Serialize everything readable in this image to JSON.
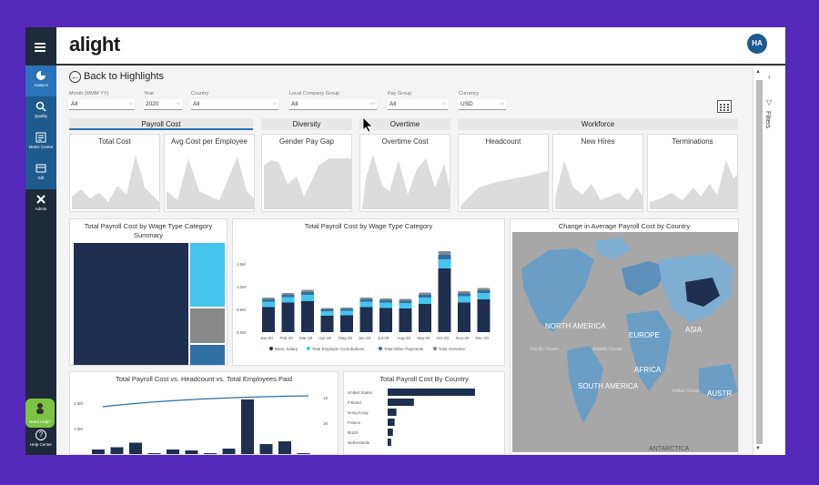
{
  "app": {
    "logo": "alight",
    "avatar_initials": "HA"
  },
  "sidebar": {
    "items": [
      {
        "label": "Analyze",
        "icon": "pie-chart-icon"
      },
      {
        "label": "Quality",
        "icon": "magnifier-icon"
      },
      {
        "label": "Metric Center",
        "icon": "metric-icon"
      },
      {
        "label": "Gift",
        "icon": "gift-icon"
      },
      {
        "label": "Admin",
        "icon": "wrench-icon"
      }
    ],
    "need_help": "Need Help?",
    "help_center": "Help Center"
  },
  "main": {
    "back_label": "Back to Highlights",
    "filters": [
      {
        "label": "Month (MMM-YY)",
        "value": "All"
      },
      {
        "label": "Year",
        "value": "2020"
      },
      {
        "label": "Country",
        "value": "All"
      },
      {
        "label": "Local Company Group",
        "value": "All"
      },
      {
        "label": "Pay Group",
        "value": "All"
      },
      {
        "label": "Currency",
        "value": "USD"
      }
    ],
    "tabs": [
      {
        "label": "Payroll Cost"
      },
      {
        "label": "Diversity"
      },
      {
        "label": "Overtime"
      },
      {
        "label": "Workforce"
      }
    ],
    "kpis": [
      {
        "label": "Total Cost"
      },
      {
        "label": "Avg Cost per Employee"
      },
      {
        "label": "Gender Pay Gap"
      },
      {
        "label": "Overtime Cost"
      },
      {
        "label": "Headcount"
      },
      {
        "label": "New Hires"
      },
      {
        "label": "Terminations"
      }
    ],
    "filters_panel_label": "Filters"
  },
  "panels": {
    "treemap_title_1": "Total Payroll Cost by Wage Type Category",
    "treemap_title_2": "Summary",
    "stacked_title": "Total Payroll Cost by Wage Type Category",
    "map_title": "Change in Average Payroll Cost by Country",
    "combo_title": "Total Payroll Cost vs. Headcount vs. Total Employees Paid",
    "country_title": "Total Payroll Cost By Country",
    "map_labels": [
      "NORTH AMERICA",
      "EUROPE",
      "ASIA",
      "AFRICA",
      "SOUTH AMERICA",
      "AUSTR",
      "ANTARCTICA",
      "Atlantic Ocean",
      "Indian Ocean",
      "Pacific Ocean"
    ]
  },
  "colors": {
    "navy": "#1e2f4f",
    "light_blue": "#45c4ee",
    "mid_blue": "#2f6fa3",
    "gray": "#888888",
    "sidebar": "#1e2a3a",
    "accent": "#2a73b8",
    "frame_bg": "#5428b8",
    "help_green": "#7cc444"
  },
  "chart_data": [
    {
      "type": "bar",
      "title": "Total Payroll Cost by Wage Type Category",
      "categories": [
        "Jan-20",
        "Feb-20",
        "Mar-20",
        "Apr-20",
        "May-20",
        "Jun-20",
        "Jul-20",
        "Aug-20",
        "Sep-20",
        "Oct-20",
        "Nov-20",
        "Dec-20"
      ],
      "y_ticks": [
        "0.0M",
        "0.5M",
        "1.0M",
        "1.5M"
      ],
      "ylim": [
        0,
        2.0
      ],
      "series": [
        {
          "name": "Basic Salary",
          "values": [
            0.55,
            0.65,
            0.68,
            0.36,
            0.37,
            0.55,
            0.53,
            0.52,
            0.62,
            1.4,
            0.65,
            0.72
          ]
        },
        {
          "name": "Total Employer Contributions",
          "values": [
            0.12,
            0.12,
            0.14,
            0.1,
            0.1,
            0.12,
            0.12,
            0.12,
            0.14,
            0.2,
            0.14,
            0.14
          ]
        },
        {
          "name": "Total Other Payments",
          "values": [
            0.05,
            0.05,
            0.06,
            0.04,
            0.04,
            0.05,
            0.05,
            0.05,
            0.06,
            0.1,
            0.06,
            0.06
          ]
        },
        {
          "name": "Total Overtime",
          "values": [
            0.04,
            0.04,
            0.05,
            0.03,
            0.03,
            0.04,
            0.04,
            0.04,
            0.05,
            0.08,
            0.05,
            0.05
          ]
        }
      ]
    },
    {
      "type": "bar",
      "title": "Total Payroll Cost By Country",
      "categories": [
        "United States",
        "Finland",
        "Hong Kong",
        "France",
        "Brazil",
        "Netherlands"
      ],
      "values": [
        100,
        30,
        10,
        8,
        6,
        4
      ]
    },
    {
      "type": "bar",
      "title": "Total Payroll Cost vs. Headcount vs. Total Employees Paid",
      "y_ticks_left": [
        "1.5M",
        "1.0M"
      ],
      "y_ticks_right": [
        "1K",
        "1K"
      ],
      "values": [
        0.1,
        0.15,
        0.25,
        0.02,
        0.1,
        0.08,
        0.02,
        0.12,
        1.2,
        0.22,
        0.28,
        0.02
      ]
    }
  ]
}
